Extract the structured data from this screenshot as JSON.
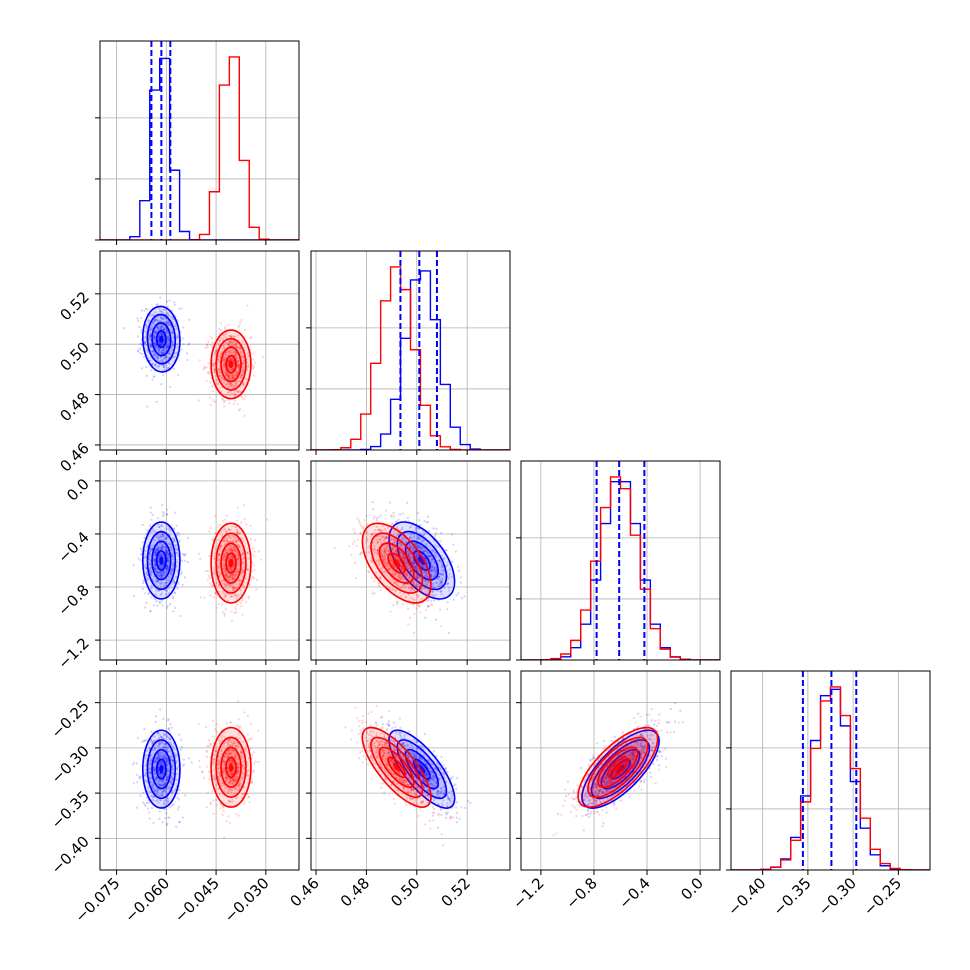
{
  "chart_data": {
    "type": "corner",
    "grid": true,
    "parameters": [
      {
        "ticks": [
          -0.075,
          -0.06,
          -0.045,
          -0.03
        ],
        "tick_labels": [
          "−0.075",
          "−0.060",
          "−0.045",
          "−0.030"
        ],
        "range": [
          -0.08,
          -0.02
        ]
      },
      {
        "ticks": [
          0.46,
          0.48,
          0.5,
          0.52
        ],
        "tick_labels": [
          "0.46",
          "0.48",
          "0.50",
          "0.52"
        ],
        "range": [
          0.458,
          0.537
        ]
      },
      {
        "ticks": [
          -1.2,
          -0.8,
          -0.4,
          0.0
        ],
        "tick_labels": [
          "−1.2",
          "−0.8",
          "−0.4",
          "0.0"
        ],
        "range": [
          -1.35,
          0.15
        ]
      },
      {
        "ticks": [
          -0.4,
          -0.35,
          -0.3,
          -0.25
        ],
        "tick_labels": [
          "−0.40",
          "−0.35",
          "−0.30",
          "−0.25"
        ],
        "range": [
          -0.435,
          -0.215
        ]
      }
    ],
    "series": [
      {
        "color": "#0000ff",
        "means": [
          -0.0615,
          0.502,
          -0.6,
          -0.3235
        ],
        "sigmas": [
          0.0028,
          0.0065,
          0.145,
          0.0215
        ],
        "correlations": {
          "1-0": -0.05,
          "2-0": 0.0,
          "2-1": -0.55,
          "3-0": 0.0,
          "3-1": -0.75,
          "3-2": 0.72
        },
        "quantiles": [
          [
            -0.0645,
            -0.0615,
            -0.0588
          ],
          [
            0.4935,
            0.501,
            0.508
          ],
          [
            -0.78,
            -0.61,
            -0.42
          ],
          [
            -0.3555,
            -0.324,
            -0.2965
          ]
        ]
      },
      {
        "color": "#ff0000",
        "means": [
          -0.0405,
          0.492,
          -0.62,
          -0.3215
        ],
        "sigmas": [
          0.003,
          0.0068,
          0.15,
          0.022
        ],
        "correlations": {
          "1-0": 0.0,
          "2-0": 0.0,
          "2-1": -0.55,
          "3-0": 0.0,
          "3-1": -0.75,
          "3-2": 0.72
        }
      }
    ]
  }
}
